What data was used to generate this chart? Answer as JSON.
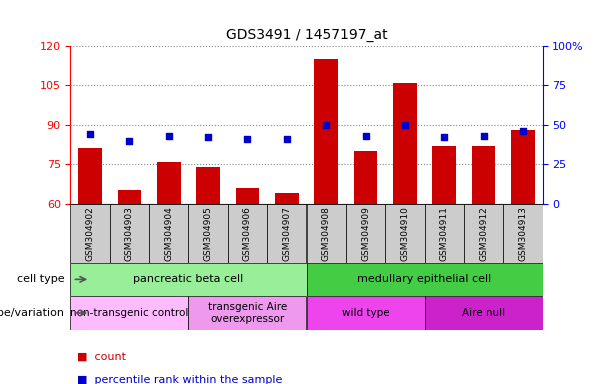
{
  "title": "GDS3491 / 1457197_at",
  "samples": [
    "GSM304902",
    "GSM304903",
    "GSM304904",
    "GSM304905",
    "GSM304906",
    "GSM304907",
    "GSM304908",
    "GSM304909",
    "GSM304910",
    "GSM304911",
    "GSM304912",
    "GSM304913"
  ],
  "counts": [
    81,
    65,
    76,
    74,
    66,
    64,
    115,
    80,
    106,
    82,
    82,
    88
  ],
  "percentiles": [
    44,
    40,
    43,
    42,
    41,
    41,
    50,
    43,
    50,
    42,
    43,
    46
  ],
  "ylim_left": [
    60,
    120
  ],
  "ylim_right": [
    0,
    100
  ],
  "yticks_left": [
    60,
    75,
    90,
    105,
    120
  ],
  "yticks_right": [
    0,
    25,
    50,
    75,
    100
  ],
  "ytick_labels_right": [
    "0",
    "25",
    "50",
    "75",
    "100%"
  ],
  "bar_color": "#cc0000",
  "dot_color": "#0000cc",
  "cell_type_groups": [
    {
      "text": "pancreatic beta cell",
      "start": 0,
      "end": 6,
      "color": "#99ee99"
    },
    {
      "text": "medullary epithelial cell",
      "start": 6,
      "end": 12,
      "color": "#44cc44"
    }
  ],
  "genotype_groups": [
    {
      "text": "non-transgenic control",
      "start": 0,
      "end": 3,
      "color": "#ffbbff"
    },
    {
      "text": "transgenic Aire\noverexpressor",
      "start": 3,
      "end": 6,
      "color": "#ee99ee"
    },
    {
      "text": "wild type",
      "start": 6,
      "end": 9,
      "color": "#ee44ee"
    },
    {
      "text": "Aire null",
      "start": 9,
      "end": 12,
      "color": "#cc22cc"
    }
  ],
  "cell_type_label": "cell type",
  "genotype_label": "genotype/variation",
  "legend_items": [
    {
      "label": "count",
      "color": "#cc0000"
    },
    {
      "label": "percentile rank within the sample",
      "color": "#0000cc"
    }
  ]
}
